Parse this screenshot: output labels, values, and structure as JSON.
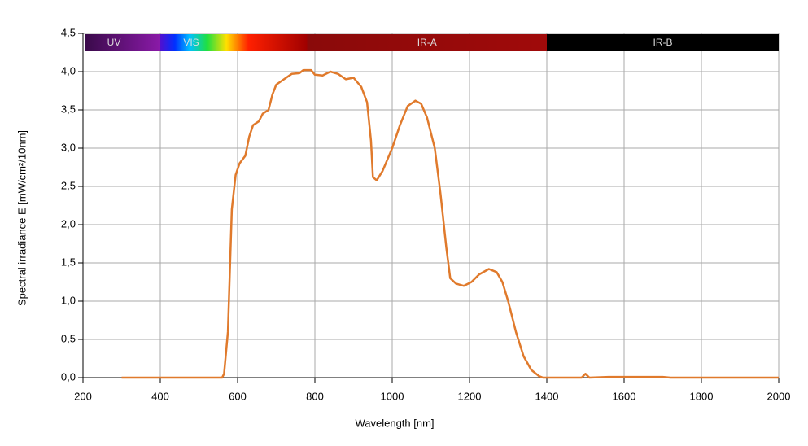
{
  "chart_data": {
    "type": "line",
    "x_label": "Wavelength [nm]",
    "y_label": "Spectral irradiance E [mW/cm²/10nm]",
    "xlim": [
      200,
      2000
    ],
    "ylim": [
      0,
      4.5
    ],
    "xticks": [
      200,
      400,
      600,
      800,
      1000,
      1200,
      1400,
      1600,
      1800,
      2000
    ],
    "yticks": [
      {
        "value": 0,
        "label": "0,0"
      },
      {
        "value": 0.5,
        "label": "0,5"
      },
      {
        "value": 1,
        "label": "1,0"
      },
      {
        "value": 1.5,
        "label": "1,5"
      },
      {
        "value": 2,
        "label": "2,0"
      },
      {
        "value": 2.5,
        "label": "2,5"
      },
      {
        "value": 3,
        "label": "3,0"
      },
      {
        "value": 3.5,
        "label": "3,5"
      },
      {
        "value": 4,
        "label": "4,0"
      },
      {
        "value": 4.5,
        "label": "4,5"
      }
    ],
    "grid": true,
    "bands": [
      {
        "label": "UV",
        "start": 200,
        "end": 400
      },
      {
        "label": "VIS",
        "start": 400,
        "end": 780
      },
      {
        "label": "IR-A",
        "start": 780,
        "end": 1400
      },
      {
        "label": "IR-B",
        "start": 1400,
        "end": 2000
      }
    ],
    "series": [
      {
        "color": "#e07a2c",
        "x": [
          300,
          400,
          500,
          560,
          565,
          575,
          585,
          595,
          605,
          620,
          630,
          640,
          655,
          665,
          680,
          690,
          700,
          720,
          740,
          760,
          770,
          790,
          800,
          820,
          840,
          860,
          880,
          900,
          920,
          935,
          945,
          950,
          960,
          975,
          1000,
          1020,
          1040,
          1060,
          1075,
          1090,
          1110,
          1125,
          1140,
          1150,
          1165,
          1185,
          1205,
          1225,
          1250,
          1270,
          1285,
          1300,
          1320,
          1340,
          1360,
          1380,
          1390,
          1400,
          1490,
          1500,
          1510,
          1560,
          1600,
          1700,
          1720,
          2000
        ],
        "values": [
          0,
          0,
          0,
          0,
          0.05,
          0.6,
          2.2,
          2.65,
          2.8,
          2.9,
          3.15,
          3.3,
          3.35,
          3.45,
          3.5,
          3.7,
          3.83,
          3.9,
          3.97,
          3.98,
          4.02,
          4.02,
          3.96,
          3.95,
          4.0,
          3.97,
          3.9,
          3.92,
          3.8,
          3.6,
          3.1,
          2.62,
          2.58,
          2.7,
          3.0,
          3.3,
          3.55,
          3.62,
          3.58,
          3.4,
          3.0,
          2.4,
          1.7,
          1.3,
          1.23,
          1.2,
          1.25,
          1.35,
          1.42,
          1.38,
          1.25,
          1.0,
          0.6,
          0.28,
          0.1,
          0.02,
          0,
          0,
          0,
          0.05,
          0,
          0.01,
          0.01,
          0.01,
          0,
          0
        ]
      }
    ]
  }
}
